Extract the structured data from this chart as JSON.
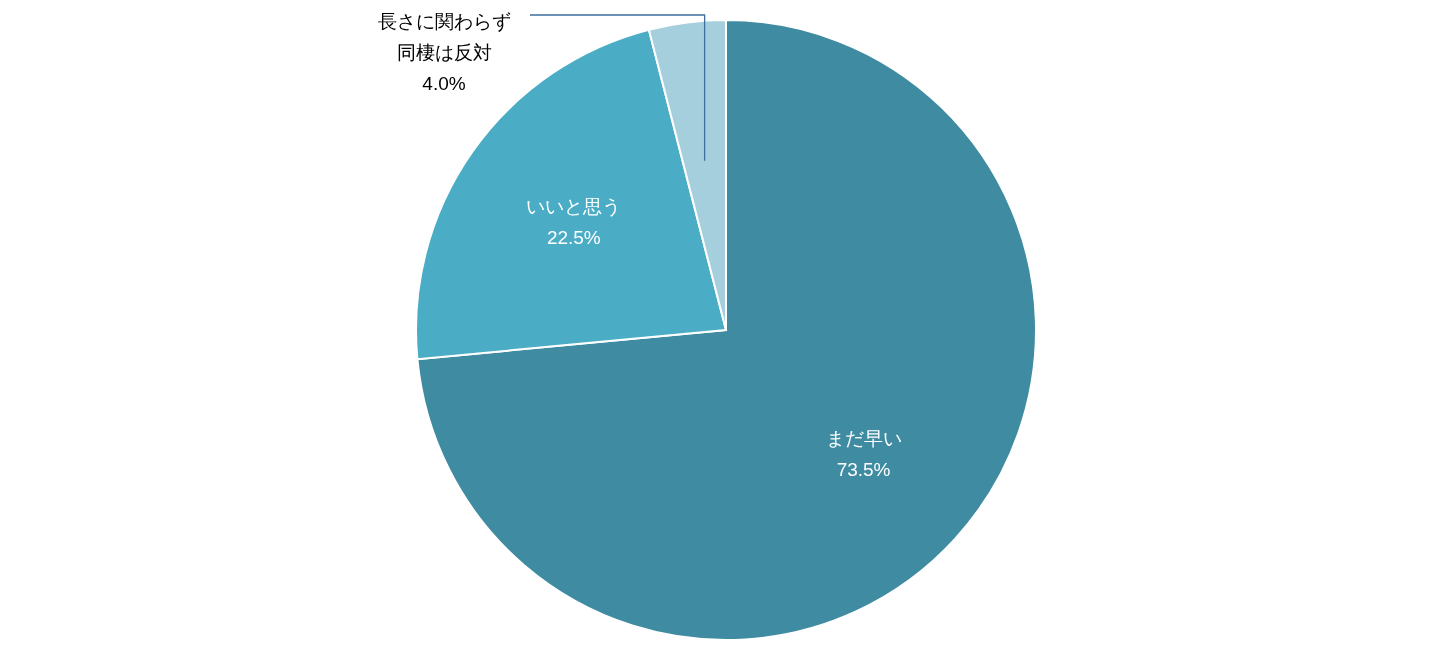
{
  "chart_data": {
    "type": "pie",
    "categories": [
      "まだ早い",
      "いいと思う",
      "長さに関わらず同棲は反対"
    ],
    "values": [
      73.5,
      22.5,
      4.0
    ],
    "value_labels": [
      "73.5%",
      "22.5%",
      "4.0%"
    ],
    "colors": [
      "#3e8ba2",
      "#4bacc6",
      "#a6cfdd"
    ]
  }
}
